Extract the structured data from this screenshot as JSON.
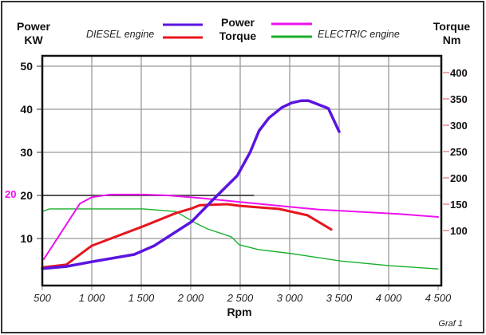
{
  "header": {
    "left_axis_title": [
      "Power",
      "KW"
    ],
    "right_axis_title": [
      "Torque",
      "Nm"
    ],
    "diesel_label": "DIESEL engine",
    "electric_label": "ELECTRIC engine",
    "center_labels": [
      "Power",
      "Torque"
    ]
  },
  "footer": {
    "caption": "Graf 1"
  },
  "colors": {
    "diesel_power": "#5a14e0",
    "diesel_torque": "#e8141e",
    "electric_power": "#ee10ee",
    "electric_torque": "#18b02c",
    "reference_line": "#555555"
  },
  "chart_data": {
    "type": "line",
    "title": "",
    "xlabel": "Rpm",
    "ylabel_left": "Power KW",
    "ylabel_right": "Torque Nm",
    "xlim": [
      500,
      4500
    ],
    "ylim_left": [
      0,
      52
    ],
    "ylim_right": [
      0,
      420
    ],
    "x_ticks": [
      "500",
      "1 000",
      "1 500",
      "2 000",
      "2 500",
      "3 000",
      "3 500",
      "4 000",
      "4 500"
    ],
    "x_tick_values": [
      500,
      1000,
      1500,
      2000,
      2500,
      3000,
      3500,
      4000,
      4500
    ],
    "y_left_ticks": [
      10,
      20,
      30,
      40,
      50
    ],
    "y_right_ticks": [
      100,
      150,
      200,
      250,
      300,
      350,
      400
    ],
    "grid": true,
    "legend_placement": "top",
    "annotation": {
      "label": "20",
      "value": 20,
      "x_range": [
        500,
        2640
      ]
    },
    "series": [
      {
        "name": "DIESEL engine Power",
        "axis": "left",
        "color": "#5a14e0",
        "x": [
          500,
          740,
          1000,
          1430,
          1630,
          2010,
          2225,
          2470,
          2600,
          2690,
          2790,
          2920,
          3020,
          3120,
          3190,
          3390,
          3500
        ],
        "y": [
          3,
          3.5,
          4.6,
          6.3,
          8.3,
          13.9,
          19,
          24.6,
          30,
          35,
          38,
          40.4,
          41.5,
          42,
          42,
          40.2,
          34.8
        ]
      },
      {
        "name": "DIESEL engine Torque",
        "axis": "right",
        "color": "#e8141e",
        "x": [
          500,
          740,
          1000,
          1520,
          1850,
          2010,
          2090,
          2370,
          2490,
          2690,
          2890,
          3180,
          3420
        ],
        "y": [
          30,
          35,
          71,
          108,
          133,
          142,
          148,
          150,
          147,
          144,
          141,
          129,
          102
        ]
      },
      {
        "name": "ELECTRIC engine Power",
        "axis": "left",
        "color": "#ee10ee",
        "x": [
          515,
          880,
          1000,
          1190,
          1520,
          1770,
          2090,
          2490,
          2890,
          3300,
          4100,
          4500
        ],
        "y": [
          5.2,
          18.1,
          19.6,
          20.2,
          20.2,
          20,
          19.4,
          18.5,
          17.6,
          16.7,
          15.7,
          15
        ]
      },
      {
        "name": "ELECTRIC engine Torque",
        "axis": "right",
        "color": "#18b02c",
        "x": [
          500,
          573,
          1520,
          1850,
          2050,
          2170,
          2410,
          2490,
          2680,
          3020,
          3520,
          4020,
          4500
        ],
        "y": [
          136,
          141,
          141,
          136,
          114,
          103,
          88,
          73,
          64,
          56,
          42,
          33,
          27
        ]
      }
    ]
  }
}
